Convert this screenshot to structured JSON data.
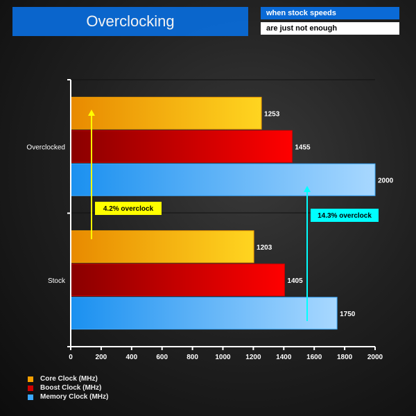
{
  "header": {
    "title": "Overclocking",
    "subtitle_line1": "when stock speeds",
    "subtitle_line2": "are just not enough"
  },
  "chart_data": {
    "type": "bar",
    "orientation": "horizontal",
    "categories": [
      "Overclocked",
      "Stock"
    ],
    "series": [
      {
        "name": "Core Clock (MHz)",
        "values": [
          1253,
          1203
        ],
        "color": "#f5a000"
      },
      {
        "name": "Boost Clock (MHz)",
        "values": [
          1455,
          1405
        ],
        "color": "#d00000"
      },
      {
        "name": "Memory Clock (MHz)",
        "values": [
          2000,
          1750
        ],
        "color": "#3aa8ff"
      }
    ],
    "xlim": [
      0,
      2000
    ],
    "xticks": [
      0,
      200,
      400,
      600,
      800,
      1000,
      1200,
      1400,
      1600,
      1800,
      2000
    ],
    "legend_position": "bottom-left",
    "annotations": [
      {
        "text": "4.2% overclock",
        "color": "#ffff00"
      },
      {
        "text": "14.3% overclock",
        "color": "#00ffff"
      }
    ]
  }
}
